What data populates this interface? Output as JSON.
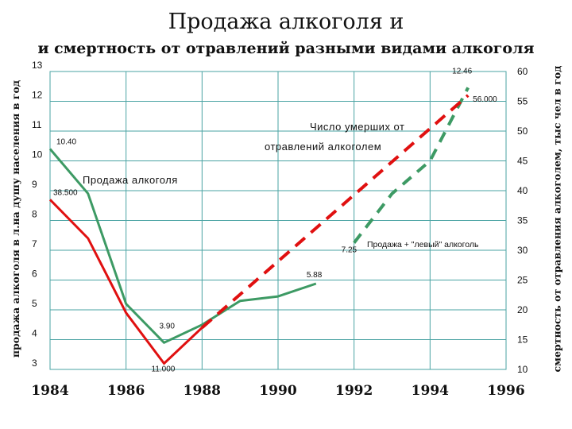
{
  "title": "Продажа алкоголя и",
  "subtitle": "и смертность от отравлений разными видами алкоголя",
  "y_left_label": "продажа алкоголя в л.на душу населения в год",
  "y_right_label": "смертность от отравления алкоголем, тыс чел в год",
  "colors": {
    "grid": "#4aa3a3",
    "sales": "#3d9a64",
    "deaths": "#e01010",
    "text": "#111111"
  },
  "chart_data": {
    "type": "line",
    "x_ticks": [
      "1984",
      "1986",
      "1988",
      "1990",
      "1992",
      "1994",
      "1996"
    ],
    "xlim": [
      1984,
      1996
    ],
    "ylim_left": [
      3,
      13
    ],
    "ylim_right": [
      10,
      60
    ],
    "y_left_ticks": [
      "3",
      "4",
      "5",
      "6",
      "7",
      "8",
      "9",
      "10",
      "11",
      "12",
      "13"
    ],
    "y_right_ticks": [
      "10",
      "15",
      "20",
      "25",
      "30",
      "35",
      "40",
      "45",
      "50",
      "55",
      "60"
    ],
    "series": [
      {
        "name": "Продажа алкоголя",
        "axis": "left",
        "style": "solid",
        "color": "#3d9a64",
        "points": [
          [
            1984,
            10.4
          ],
          [
            1985,
            8.9
          ],
          [
            1986,
            5.2
          ],
          [
            1987,
            3.9
          ],
          [
            1988,
            4.5
          ],
          [
            1989,
            5.3
          ],
          [
            1990,
            5.45
          ],
          [
            1991,
            5.88
          ]
        ]
      },
      {
        "name": "Продажа + \"левый\" алкоголь",
        "axis": "left",
        "style": "dashed",
        "color": "#3d9a64",
        "points": [
          [
            1992,
            7.25
          ],
          [
            1993,
            8.9
          ],
          [
            1994,
            10.0
          ],
          [
            1995,
            12.46
          ]
        ]
      },
      {
        "name": "Число умерших от отравлений алкоголем",
        "axis": "right",
        "style": "solid",
        "color": "#e01010",
        "points": [
          [
            1984,
            38.5
          ],
          [
            1985,
            32.0
          ],
          [
            1986,
            19.5
          ],
          [
            1987,
            11.0
          ],
          [
            1988,
            17.0
          ]
        ]
      },
      {
        "name": "Число умерших от отравлений алкоголем (продолжение)",
        "axis": "right",
        "style": "dashed",
        "color": "#e01010",
        "points": [
          [
            1988,
            17.0
          ],
          [
            1995,
            56.0
          ]
        ]
      }
    ],
    "data_labels": [
      {
        "text": "10.40",
        "x": 1984,
        "y": 10.4,
        "axis": "left"
      },
      {
        "text": "38.500",
        "x": 1984,
        "y": 38.5,
        "axis": "right"
      },
      {
        "text": "3.90",
        "x": 1987,
        "y": 3.9,
        "axis": "left"
      },
      {
        "text": "11.000",
        "x": 1987,
        "y": 11.0,
        "axis": "right"
      },
      {
        "text": "5.88",
        "x": 1991,
        "y": 5.88,
        "axis": "left"
      },
      {
        "text": "7.25",
        "x": 1992,
        "y": 7.25,
        "axis": "left"
      },
      {
        "text": "12.46",
        "x": 1995,
        "y": 12.46,
        "axis": "left"
      },
      {
        "text": "56.000",
        "x": 1995,
        "y": 56.0,
        "axis": "right"
      }
    ],
    "annotations": [
      {
        "text": "Продажа алкоголя"
      },
      {
        "text": "Число умерших от"
      },
      {
        "text": "отравлений алкоголем"
      },
      {
        "text": "Продажа + \"левый\" алкоголь"
      }
    ],
    "grid": true
  }
}
